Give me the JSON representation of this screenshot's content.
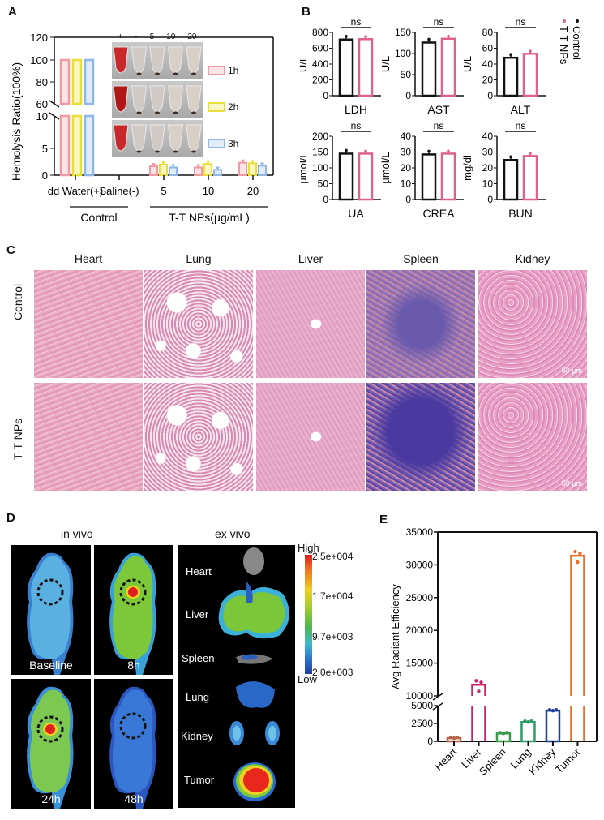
{
  "panels": {
    "A": {
      "letter": "A"
    },
    "B": {
      "letter": "B"
    },
    "C": {
      "letter": "C"
    },
    "D": {
      "letter": "D"
    },
    "E": {
      "letter": "E"
    }
  },
  "chart_data": [
    {
      "id": "A",
      "type": "bar",
      "title": "",
      "ylabel": "Hemolysis Ratio(100%)",
      "xlabel": "",
      "broken_axis": {
        "lower": [
          0,
          10
        ],
        "upper": [
          60,
          120
        ]
      },
      "yticks_lower": [
        0,
        5,
        10
      ],
      "yticks_upper": [
        60,
        80,
        100,
        120
      ],
      "categories": [
        "dd Water(+)",
        "Saline(-)",
        "5",
        "10",
        "20"
      ],
      "group_labels": [
        {
          "label": "Control",
          "spans": [
            "dd Water(+)",
            "Saline(-)"
          ]
        },
        {
          "label": "T-T NPs(µg/mL)",
          "spans": [
            "5",
            "10",
            "20"
          ]
        }
      ],
      "series": [
        {
          "name": "1h",
          "color": "#f29aa4",
          "values": [
            100,
            0,
            1.5,
            1.3,
            2.1
          ]
        },
        {
          "name": "2h",
          "color": "#e8e03a",
          "values": [
            100,
            0,
            1.8,
            1.9,
            2.0
          ]
        },
        {
          "name": "3h",
          "color": "#8fb6e6",
          "values": [
            100,
            0,
            1.3,
            0.9,
            1.6
          ]
        }
      ],
      "inset_photo": {
        "column_labels": [
          "+",
          "-",
          "5",
          "10",
          "20"
        ],
        "rows": [
          "1h",
          "2h",
          "3h"
        ]
      },
      "legend": [
        "1h",
        "2h",
        "3h"
      ]
    },
    {
      "id": "B",
      "type": "bar",
      "legend": [
        {
          "name": "Control",
          "color": "#111111"
        },
        {
          "name": "T-T NPs",
          "color": "#e0608c"
        }
      ],
      "subplots": [
        {
          "name": "LDH",
          "ylabel": "U/L",
          "ylim": [
            0,
            800
          ],
          "yticks": [
            0,
            200,
            400,
            600,
            800
          ],
          "control": 710,
          "ttnps": 715,
          "sig": "ns"
        },
        {
          "name": "AST",
          "ylabel": "U/L",
          "ylim": [
            0,
            150
          ],
          "yticks": [
            0,
            50,
            100,
            150
          ],
          "control": 126,
          "ttnps": 135,
          "sig": "ns"
        },
        {
          "name": "ALT",
          "ylabel": "U/L",
          "ylim": [
            0,
            80
          ],
          "yticks": [
            0,
            20,
            40,
            60,
            80
          ],
          "control": 48,
          "ttnps": 53,
          "sig": "ns"
        },
        {
          "name": "UA",
          "ylabel": "µmol/L",
          "ylim": [
            0,
            200
          ],
          "yticks": [
            0,
            50,
            100,
            150,
            200
          ],
          "control": 145,
          "ttnps": 145,
          "sig": "ns"
        },
        {
          "name": "CREA",
          "ylabel": "µmol/L",
          "ylim": [
            0,
            40
          ],
          "yticks": [
            0,
            10,
            20,
            30,
            40
          ],
          "control": 28.5,
          "ttnps": 29,
          "sig": "ns"
        },
        {
          "name": "BUN",
          "ylabel": "mg/dl",
          "ylim": [
            0,
            40
          ],
          "yticks": [
            0,
            10,
            20,
            30,
            40
          ],
          "control": 25,
          "ttnps": 27.5,
          "sig": "ns"
        }
      ]
    },
    {
      "id": "E",
      "type": "bar",
      "ylabel": "Avg Radiant Efficiency",
      "xlabel": "",
      "broken_axis": {
        "lower": [
          0,
          5000
        ],
        "upper": [
          10000,
          35000
        ]
      },
      "yticks_lower": [
        0,
        2500,
        5000
      ],
      "yticks_upper": [
        10000,
        15000,
        20000,
        25000,
        30000,
        35000
      ],
      "categories": [
        "Heart",
        "Liver",
        "Spleen",
        "Lung",
        "Kidney",
        "Tumor"
      ],
      "values": [
        450,
        11700,
        1100,
        2700,
        4300,
        31400
      ],
      "colors": [
        "#b5654a",
        "#c8246a",
        "#3a9a4a",
        "#2f9a6a",
        "#1f3f9a",
        "#e8702a"
      ]
    }
  ],
  "panelC": {
    "columns": [
      "Heart",
      "Lung",
      "Liver",
      "Spleen",
      "Kidney"
    ],
    "rows": [
      "Control",
      "T-T NPs"
    ],
    "scale_bar": "50 µm"
  },
  "panelD": {
    "in_vivo_title": "in vivo",
    "ex_vivo_title": "ex vivo",
    "timepoints": [
      "Baseline",
      "8h",
      "24h",
      "48h"
    ],
    "organs": [
      "Heart",
      "Liver",
      "Spleen",
      "Lung",
      "Kidney",
      "Tumor"
    ],
    "colorbar": {
      "high_label": "High",
      "low_label": "Low",
      "ticks": [
        "2.5e+004",
        "1.7e+004",
        "9.7e+003",
        "2.0e+003"
      ]
    }
  }
}
